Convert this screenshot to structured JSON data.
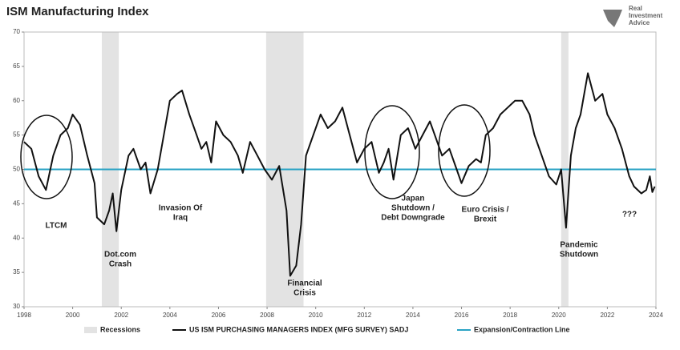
{
  "chart_data": {
    "type": "line",
    "title": "ISM Manufacturing Index",
    "logo": [
      "Real",
      "Investment",
      "Advice"
    ],
    "x": [
      1998.0,
      1998.3,
      1998.6,
      1998.9,
      1999.2,
      1999.5,
      1999.8,
      2000.0,
      2000.3,
      2000.6,
      2000.9,
      2001.0,
      2001.3,
      2001.5,
      2001.65,
      2001.8,
      2002.0,
      2002.3,
      2002.5,
      2002.8,
      2003.0,
      2003.2,
      2003.5,
      2003.8,
      2004.0,
      2004.3,
      2004.5,
      2004.8,
      2005.1,
      2005.3,
      2005.5,
      2005.7,
      2005.9,
      2006.2,
      2006.5,
      2006.8,
      2007.0,
      2007.3,
      2007.6,
      2007.9,
      2008.2,
      2008.5,
      2008.8,
      2008.95,
      2009.2,
      2009.4,
      2009.6,
      2009.9,
      2010.2,
      2010.5,
      2010.8,
      2011.1,
      2011.4,
      2011.7,
      2012.0,
      2012.3,
      2012.6,
      2012.8,
      2013.0,
      2013.2,
      2013.5,
      2013.8,
      2014.1,
      2014.4,
      2014.7,
      2014.9,
      2015.2,
      2015.5,
      2015.8,
      2016.0,
      2016.3,
      2016.6,
      2016.8,
      2017.0,
      2017.3,
      2017.6,
      2017.9,
      2018.2,
      2018.5,
      2018.8,
      2019.0,
      2019.3,
      2019.6,
      2019.9,
      2020.1,
      2020.3,
      2020.5,
      2020.7,
      2020.9,
      2021.2,
      2021.5,
      2021.8,
      2022.0,
      2022.3,
      2022.6,
      2022.9,
      2023.1,
      2023.4,
      2023.6,
      2023.75,
      2023.85,
      2023.95
    ],
    "series": [
      {
        "name": "US ISM PURCHASING MANAGERS INDEX (MFG SURVEY) SADJ",
        "color": "#111111",
        "values": [
          54,
          53,
          49,
          47,
          52,
          55,
          56,
          58,
          56.5,
          52,
          48,
          43,
          42,
          44,
          46.5,
          41,
          47,
          52,
          53,
          50,
          51,
          46.5,
          50,
          56,
          60,
          61,
          61.5,
          58,
          55,
          53,
          54,
          51,
          57,
          55,
          54,
          52,
          49.5,
          54,
          52,
          50,
          48.5,
          50.5,
          44,
          34.5,
          36,
          42,
          52,
          55,
          58,
          56,
          57,
          59,
          55,
          51,
          53,
          54,
          49.5,
          51,
          53,
          48.5,
          55,
          56,
          53,
          55,
          57,
          55,
          52,
          53,
          50,
          48,
          50.5,
          51.5,
          51,
          55,
          56,
          58,
          59,
          60,
          60,
          58,
          55,
          52,
          49,
          47.8,
          50,
          41.5,
          52,
          56,
          58,
          64,
          60,
          61,
          58,
          56,
          53,
          49,
          47.5,
          46.5,
          47,
          49,
          46.7,
          47.5
        ]
      }
    ],
    "hline": {
      "name": "Expansion/Contraction Line",
      "value": 50,
      "color": "#2aa3c4"
    },
    "recessions": {
      "name": "Recessions",
      "color": "#e3e3e3",
      "spans": [
        [
          2001.2,
          2001.9
        ],
        [
          2007.96,
          2009.5
        ],
        [
          2020.1,
          2020.4
        ]
      ]
    },
    "annotations": [
      [
        "LTCM"
      ],
      [
        "Dot.com",
        "Crash"
      ],
      [
        "Invasion Of",
        "Iraq"
      ],
      [
        "Financial",
        "Crisis"
      ],
      [
        "Japan",
        "Shutdown /",
        "Debt Downgrade"
      ],
      [
        "Euro Crisis /",
        "Brexit"
      ],
      [
        "Pandemic",
        "Shutdown"
      ],
      [
        "???"
      ]
    ],
    "xlim": [
      1998,
      2024
    ],
    "xticks": [
      1998,
      2000,
      2002,
      2004,
      2006,
      2008,
      2010,
      2012,
      2014,
      2016,
      2018,
      2020,
      2022,
      2024
    ],
    "ylim": [
      30,
      70
    ],
    "yticks": [
      30,
      35,
      40,
      45,
      50,
      55,
      60,
      65,
      70
    ]
  }
}
